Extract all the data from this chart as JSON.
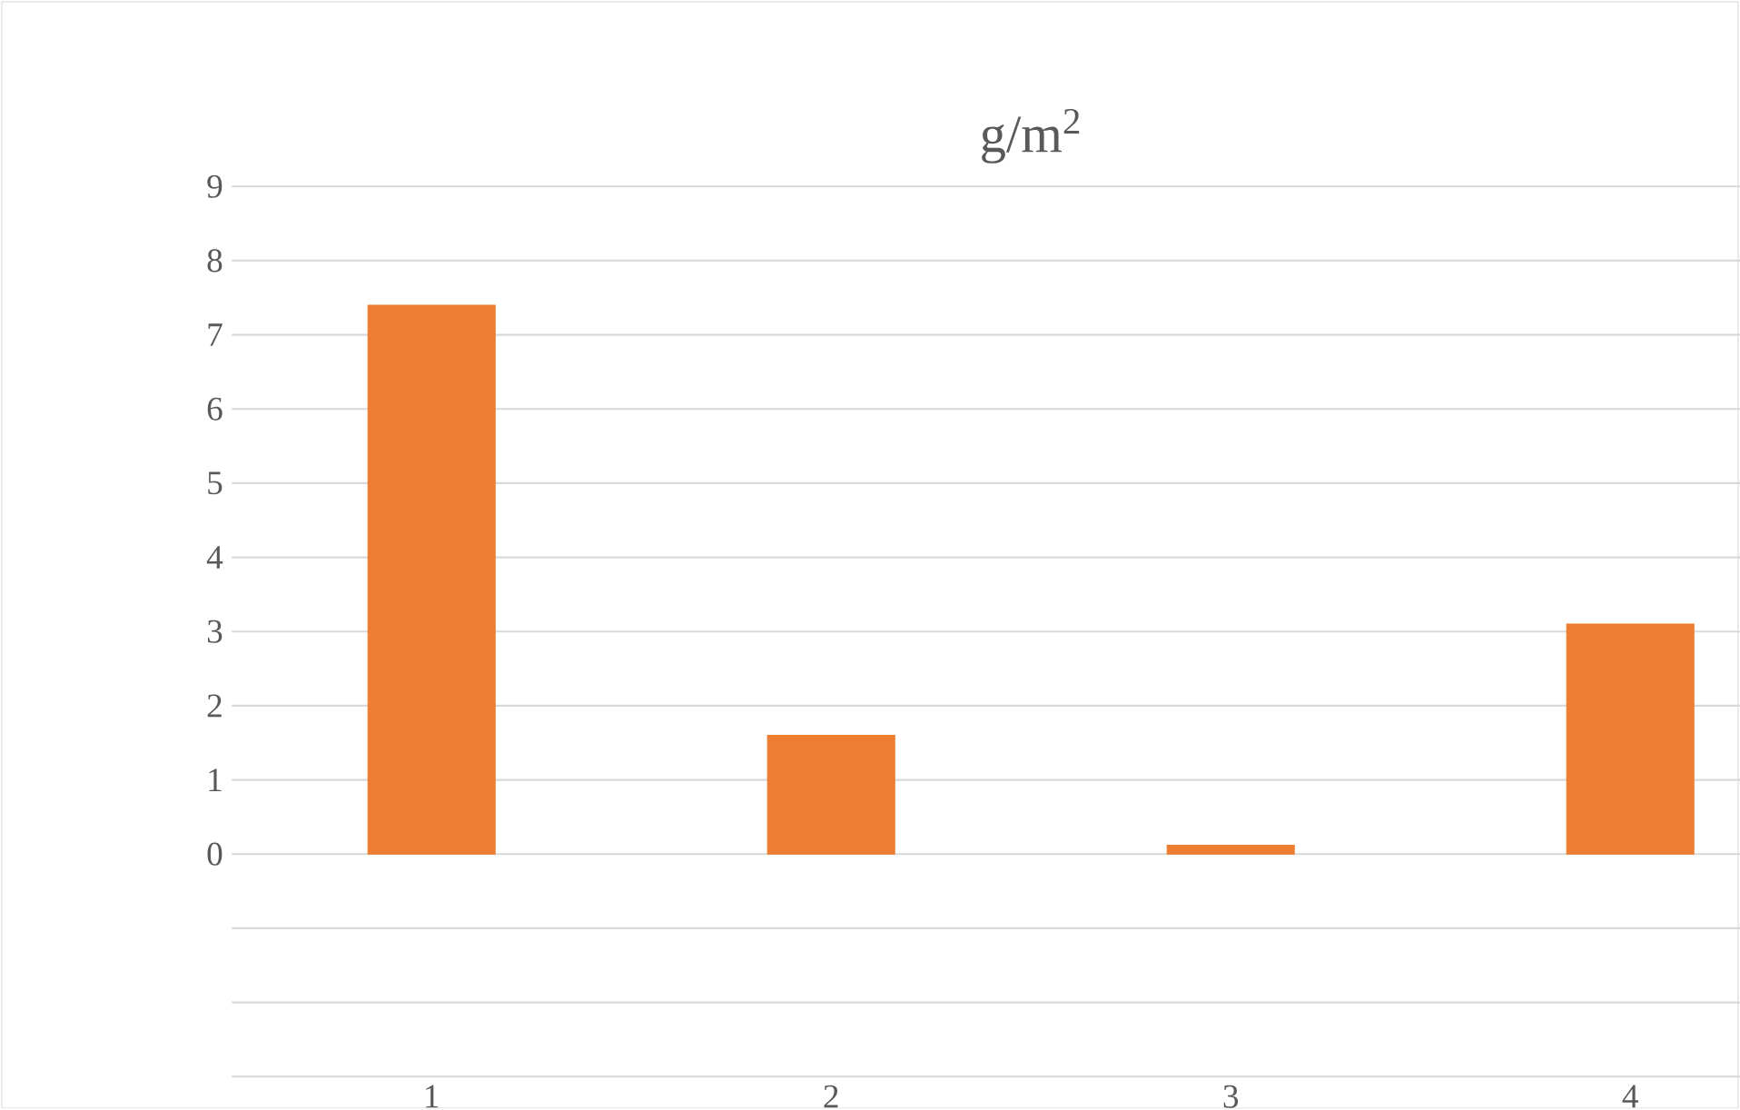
{
  "chart_data": {
    "type": "bar",
    "title": "g/m$^{2}$",
    "categories": [
      "1",
      "2",
      "3",
      "4"
    ],
    "values": [
      7.4,
      1.6,
      0.12,
      3.1
    ],
    "color": "#ed7d31",
    "ylim": [
      -3,
      9
    ],
    "yticks": [
      {
        "value": -3,
        "label": null
      },
      {
        "value": -2,
        "label": null
      },
      {
        "value": -1,
        "label": null
      },
      0,
      1,
      2,
      3,
      4,
      5,
      6,
      7,
      8,
      9
    ],
    "grid": "y"
  }
}
